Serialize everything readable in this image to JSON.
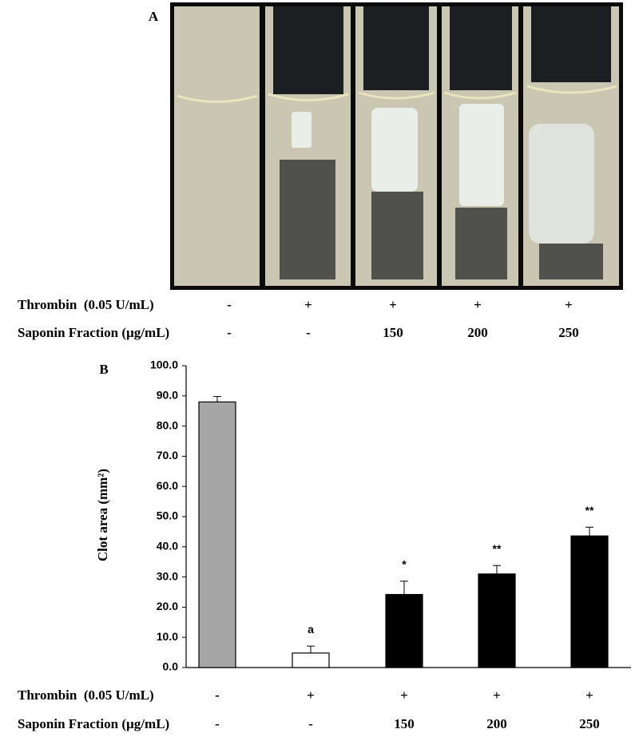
{
  "panel_a": {
    "label": "A",
    "rows": [
      {
        "name": "Thrombin  (0.05 U/mL)",
        "values": [
          "-",
          "+",
          "+",
          "+",
          "+"
        ]
      },
      {
        "name": "Saponin Fraction (µg/mL)",
        "values": [
          "-",
          "-",
          "150",
          "200",
          "250"
        ]
      }
    ]
  },
  "chart_data": {
    "type": "bar",
    "label": "B",
    "ylabel": "Clot area (mm²)",
    "categories": [
      "-/-",
      "+/-",
      "+/150",
      "+/200",
      "+/250"
    ],
    "values": [
      88.0,
      4.8,
      24.2,
      31.0,
      43.6
    ],
    "errors": [
      1.8,
      2.3,
      4.4,
      2.8,
      2.9
    ],
    "colors": [
      "#a6a6a6",
      "#ffffff",
      "#000000",
      "#000000",
      "#000000"
    ],
    "annotations": [
      {
        "x": 1,
        "text": "a"
      },
      {
        "x": 2,
        "text": "*"
      },
      {
        "x": 3,
        "text": "**"
      },
      {
        "x": 4,
        "text": "**"
      }
    ],
    "ylim": [
      0,
      100
    ],
    "yticks": [
      {
        "value": 0,
        "label": "0.0"
      },
      {
        "value": 10,
        "label": "10.0"
      },
      {
        "value": 20,
        "label": "20.0"
      },
      {
        "value": 30,
        "label": "30.0"
      },
      {
        "value": 40,
        "label": "40.0"
      },
      {
        "value": 50,
        "label": "50.0"
      },
      {
        "value": 60,
        "label": "60.0"
      },
      {
        "value": 70,
        "label": "70.0"
      },
      {
        "value": 80,
        "label": "80.0"
      },
      {
        "value": 90,
        "label": "90.0"
      },
      {
        "value": 100,
        "label": "100.0"
      }
    ],
    "x_rows": [
      {
        "name": "Thrombin  (0.05 U/mL)",
        "values": [
          "-",
          "+",
          "+",
          "+",
          "+"
        ]
      },
      {
        "name": "Saponin Fraction (µg/mL)",
        "values": [
          "-",
          "-",
          "150",
          "200",
          "250"
        ]
      }
    ]
  }
}
